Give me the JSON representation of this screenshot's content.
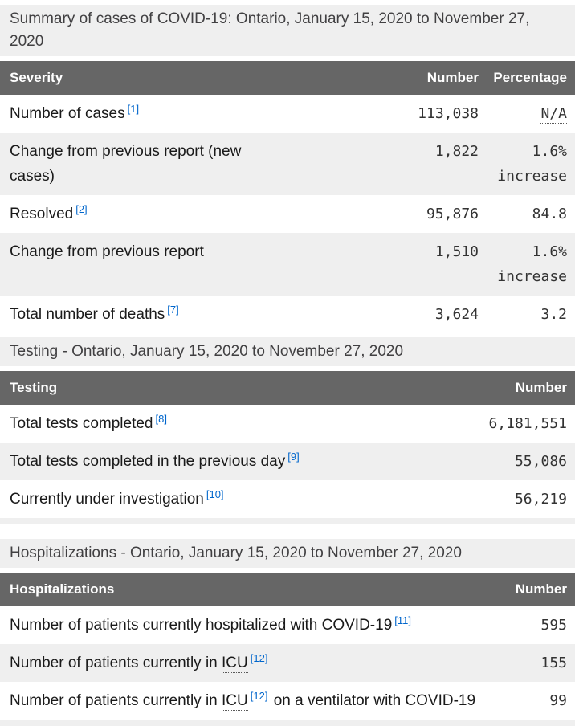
{
  "palette": {
    "header_bg": "#666666",
    "header_text": "#ffffff",
    "section_title_bg": "#efefef",
    "row_shaded_bg": "#efefef",
    "label_color": "#1a1a1a",
    "value_color": "#333333",
    "footnote_link_color": "#0066cc"
  },
  "tables": [
    {
      "id": "summary",
      "title": "Summary of cases of COVID-19: Ontario, January 15, 2020 to November 27, 2020",
      "columns": [
        "Severity",
        "Number",
        "Percentage"
      ],
      "rows": [
        {
          "shaded": false,
          "label_parts": [
            {
              "type": "text",
              "text": "Number of cases"
            },
            {
              "type": "footnote",
              "text": "[1]"
            }
          ],
          "number": "113,038",
          "percentage": {
            "text": "N/A",
            "abbr": true
          }
        },
        {
          "shaded": true,
          "label_parts": [
            {
              "type": "text",
              "text": "Change from previous report (new cases)"
            }
          ],
          "number": "1,822",
          "percentage": {
            "text": "1.6% increase",
            "abbr": false
          }
        },
        {
          "shaded": false,
          "label_parts": [
            {
              "type": "text",
              "text": "Resolved"
            },
            {
              "type": "footnote",
              "text": "[2]"
            }
          ],
          "number": "95,876",
          "percentage": {
            "text": "84.8",
            "abbr": false
          }
        },
        {
          "shaded": true,
          "label_parts": [
            {
              "type": "text",
              "text": "Change from previous report"
            }
          ],
          "number": "1,510",
          "percentage": {
            "text": "1.6% increase",
            "abbr": false
          }
        },
        {
          "shaded": false,
          "label_parts": [
            {
              "type": "text",
              "text": "Total number of deaths"
            },
            {
              "type": "footnote",
              "text": "[7]"
            }
          ],
          "number": "3,624",
          "percentage": {
            "text": "3.2",
            "abbr": false
          }
        }
      ],
      "trailing_spacer": false
    },
    {
      "id": "testing",
      "title": "Testing - Ontario, January 15, 2020 to November 27, 2020",
      "columns": [
        "Testing",
        "Number"
      ],
      "rows": [
        {
          "shaded": false,
          "label_parts": [
            {
              "type": "text",
              "text": "Total tests completed"
            },
            {
              "type": "footnote",
              "text": "[8]"
            }
          ],
          "number": "6,181,551"
        },
        {
          "shaded": true,
          "label_parts": [
            {
              "type": "text",
              "text": "Total tests completed in the previous day"
            },
            {
              "type": "footnote",
              "text": "[9]"
            }
          ],
          "number": "55,086"
        },
        {
          "shaded": false,
          "label_parts": [
            {
              "type": "text",
              "text": "Currently under investigation"
            },
            {
              "type": "footnote",
              "text": "[10]"
            }
          ],
          "number": "56,219"
        }
      ],
      "trailing_spacer": true
    },
    {
      "id": "hospitalizations",
      "title": "Hospitalizations - Ontario, January 15, 2020 to November 27, 2020",
      "columns": [
        "Hospitalizations",
        "Number"
      ],
      "rows": [
        {
          "shaded": false,
          "label_parts": [
            {
              "type": "text",
              "text": "Number of patients currently hospitalized with COVID-19"
            },
            {
              "type": "footnote",
              "text": "[11]"
            }
          ],
          "number": "595"
        },
        {
          "shaded": true,
          "label_parts": [
            {
              "type": "text",
              "text": "Number of patients currently in "
            },
            {
              "type": "abbr",
              "text": "ICU"
            },
            {
              "type": "footnote",
              "text": "[12]"
            }
          ],
          "number": "155"
        },
        {
          "shaded": false,
          "label_parts": [
            {
              "type": "text",
              "text": "Number of patients currently in "
            },
            {
              "type": "abbr",
              "text": "ICU"
            },
            {
              "type": "footnote",
              "text": "[12]"
            },
            {
              "type": "text",
              "text": " on a ventilator with COVID-19"
            }
          ],
          "number": "99"
        }
      ],
      "trailing_spacer": true
    }
  ]
}
